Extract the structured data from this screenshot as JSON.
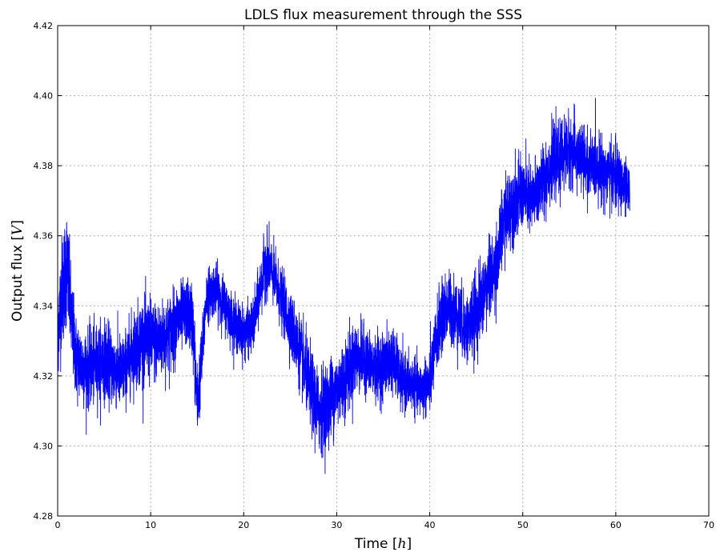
{
  "chart_data": {
    "type": "line",
    "title": "LDLS flux measurement through the SSS",
    "xlabel": "Time",
    "xlabel_unit": "h",
    "ylabel": "Output flux",
    "ylabel_unit": "V",
    "xlim": [
      0,
      70
    ],
    "ylim": [
      4.28,
      4.42
    ],
    "xticks": [
      0,
      10,
      20,
      30,
      40,
      50,
      60,
      70
    ],
    "xtick_labels": [
      "0",
      "10",
      "20",
      "30",
      "40",
      "50",
      "60",
      "70"
    ],
    "yticks": [
      4.28,
      4.3,
      4.32,
      4.34,
      4.36,
      4.38,
      4.4,
      4.42
    ],
    "ytick_labels": [
      "4.28",
      "4.30",
      "4.32",
      "4.34",
      "4.36",
      "4.38",
      "4.40",
      "4.42"
    ],
    "grid": true,
    "series": [
      {
        "color": "#0000ff",
        "x": [
          0,
          0.5,
          1,
          1.5,
          2,
          3,
          4,
          5,
          6,
          7,
          8,
          9,
          10,
          11,
          12,
          13,
          14,
          14.5,
          15,
          15.5,
          16,
          17,
          18,
          19,
          20,
          21,
          22,
          22.5,
          23,
          24,
          25,
          26,
          27,
          28,
          29,
          30,
          31,
          32,
          33,
          34,
          35,
          36,
          37,
          38,
          39,
          40,
          41,
          42,
          43,
          44,
          45,
          46,
          47,
          48,
          49,
          50,
          51,
          52,
          53,
          54,
          55,
          56,
          57,
          58,
          59,
          60,
          61,
          61.5
        ],
        "y": [
          4.333,
          4.345,
          4.352,
          4.335,
          4.325,
          4.322,
          4.323,
          4.325,
          4.322,
          4.321,
          4.327,
          4.33,
          4.33,
          4.33,
          4.332,
          4.336,
          4.338,
          4.336,
          4.312,
          4.325,
          4.343,
          4.345,
          4.34,
          4.335,
          4.332,
          4.334,
          4.348,
          4.353,
          4.35,
          4.342,
          4.335,
          4.327,
          4.318,
          4.31,
          4.312,
          4.316,
          4.32,
          4.325,
          4.325,
          4.322,
          4.323,
          4.325,
          4.318,
          4.318,
          4.316,
          4.318,
          4.335,
          4.34,
          4.337,
          4.333,
          4.338,
          4.345,
          4.35,
          4.365,
          4.37,
          4.372,
          4.37,
          4.375,
          4.38,
          4.382,
          4.385,
          4.383,
          4.38,
          4.38,
          4.378,
          4.377,
          4.374,
          4.372
        ],
        "noise_amplitude": [
          0.014,
          0.018,
          0.018,
          0.014,
          0.013,
          0.012,
          0.012,
          0.012,
          0.012,
          0.011,
          0.012,
          0.013,
          0.013,
          0.012,
          0.012,
          0.011,
          0.01,
          0.012,
          0.012,
          0.01,
          0.008,
          0.008,
          0.008,
          0.008,
          0.008,
          0.008,
          0.009,
          0.01,
          0.009,
          0.009,
          0.01,
          0.011,
          0.012,
          0.013,
          0.013,
          0.012,
          0.012,
          0.011,
          0.01,
          0.01,
          0.01,
          0.01,
          0.009,
          0.008,
          0.008,
          0.01,
          0.011,
          0.011,
          0.011,
          0.011,
          0.012,
          0.012,
          0.012,
          0.012,
          0.012,
          0.011,
          0.011,
          0.011,
          0.011,
          0.011,
          0.011,
          0.011,
          0.01,
          0.01,
          0.01,
          0.01,
          0.009,
          0.007
        ]
      }
    ]
  }
}
